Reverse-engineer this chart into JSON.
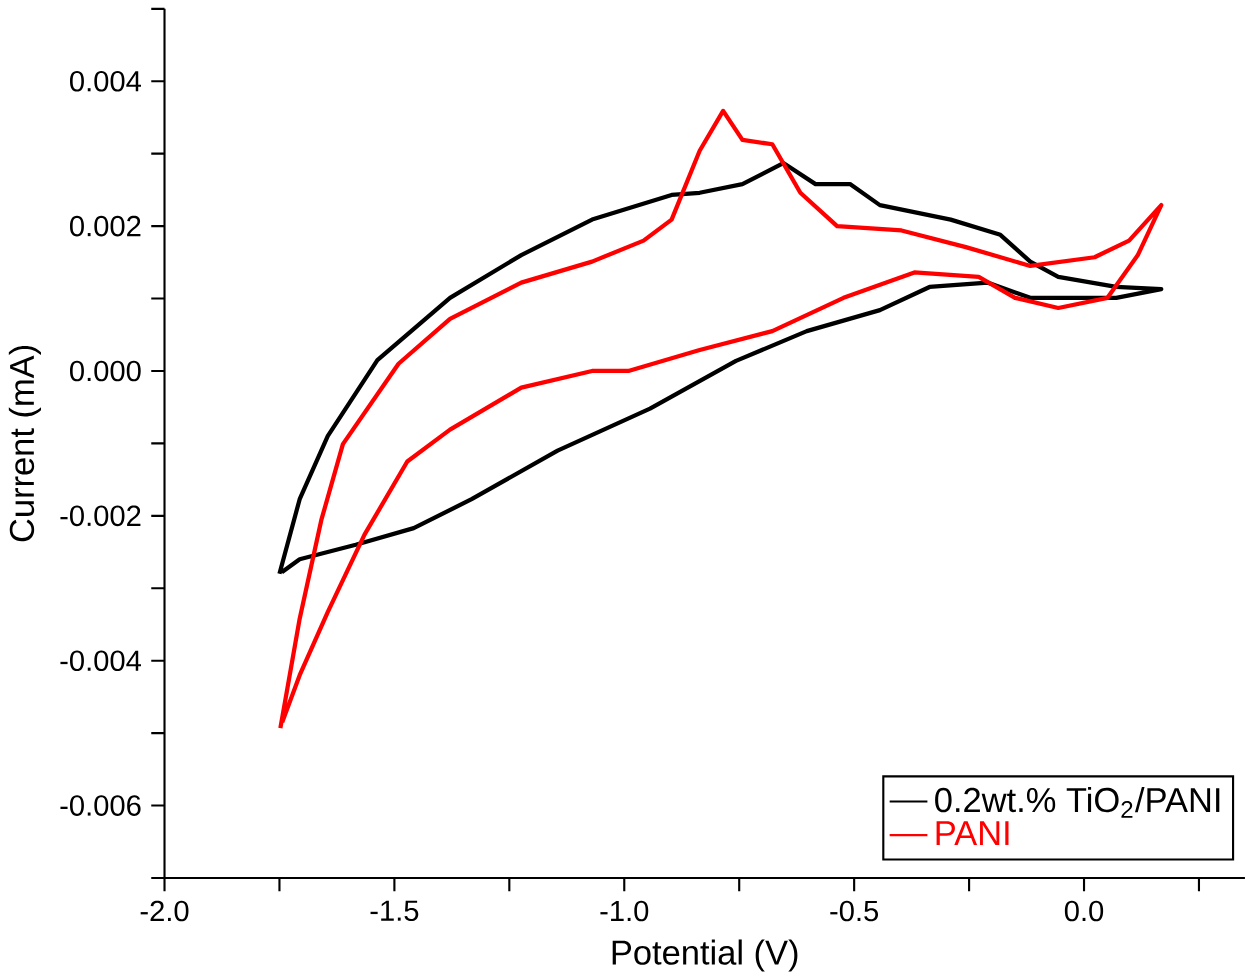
{
  "chart_data": {
    "type": "line",
    "xlabel": "Potential (V)",
    "ylabel": "Current (mA)",
    "xlim": [
      -2.0,
      0.35
    ],
    "ylim": [
      -0.007,
      0.005
    ],
    "xticks": [
      {
        "value": -2.0,
        "label": "-2.0"
      },
      {
        "value": -1.75,
        "label": null
      },
      {
        "value": -1.5,
        "label": "-1.5"
      },
      {
        "value": -1.25,
        "label": null
      },
      {
        "value": -1.0,
        "label": "-1.0"
      },
      {
        "value": -0.75,
        "label": null
      },
      {
        "value": -0.5,
        "label": "-0.5"
      },
      {
        "value": -0.25,
        "label": null
      },
      {
        "value": 0.0,
        "label": "0.0"
      },
      {
        "value": 0.25,
        "label": null
      }
    ],
    "yticks": [
      {
        "value": -0.007,
        "label": null
      },
      {
        "value": -0.006,
        "label": "-0.006"
      },
      {
        "value": -0.005,
        "label": null
      },
      {
        "value": -0.004,
        "label": "-0.004"
      },
      {
        "value": -0.003,
        "label": null
      },
      {
        "value": -0.002,
        "label": "-0.002"
      },
      {
        "value": -0.001,
        "label": null
      },
      {
        "value": 0.0,
        "label": "0.000"
      },
      {
        "value": 0.001,
        "label": null
      },
      {
        "value": 0.002,
        "label": "0.002"
      },
      {
        "value": 0.003,
        "label": null
      },
      {
        "value": 0.004,
        "label": "0.004"
      },
      {
        "value": 0.005,
        "label": null
      }
    ],
    "legend": "bottom right",
    "grid": false,
    "marker": "none",
    "line_style": "solid",
    "series": [
      {
        "name": "0.2wt.% TiO$_{2}$/PANI",
        "color": "#000000",
        "x": [
          -1.75,
          -1.706,
          -1.645,
          -1.537,
          -1.379,
          -1.224,
          -1.07,
          -0.897,
          -0.836,
          -0.743,
          -0.654,
          -0.584,
          -0.509,
          -0.444,
          -0.29,
          -0.182,
          -0.117,
          -0.056,
          0.07,
          0.168,
          0.07,
          -0.023,
          -0.117,
          -0.21,
          -0.336,
          -0.444,
          -0.603,
          -0.757,
          -0.944,
          -1.145,
          -1.332,
          -1.458,
          -1.584,
          -1.706,
          -1.745
        ],
        "values": [
          -0.0028,
          -0.00177,
          -0.0009,
          0.00015,
          0.00101,
          0.0016,
          0.00209,
          0.00243,
          0.00246,
          0.00258,
          0.00287,
          0.00258,
          0.00258,
          0.00229,
          0.00209,
          0.00188,
          0.00151,
          0.0013,
          0.00116,
          0.00113,
          0.00101,
          0.00101,
          0.00101,
          0.00122,
          0.00116,
          0.00084,
          0.00055,
          0.00014,
          -0.00052,
          -0.0011,
          -0.00177,
          -0.00217,
          -0.0024,
          -0.0026,
          -0.00278
        ]
      },
      {
        "name": "PANI",
        "color": "#ff0000",
        "x": [
          -1.748,
          -1.706,
          -1.659,
          -1.612,
          -1.491,
          -1.379,
          -1.224,
          -1.07,
          -0.958,
          -0.897,
          -0.836,
          -0.785,
          -0.743,
          -0.678,
          -0.617,
          -0.537,
          -0.397,
          -0.257,
          -0.117,
          0.023,
          0.098,
          0.168,
          0.117,
          0.051,
          -0.056,
          -0.15,
          -0.229,
          -0.369,
          -0.523,
          -0.678,
          -0.836,
          -0.991,
          -1.07,
          -1.224,
          -1.379,
          -1.472,
          -1.565,
          -1.645,
          -1.706,
          -1.744
        ],
        "values": [
          -0.00493,
          -0.00342,
          -0.00206,
          -0.00101,
          0.0001,
          0.00072,
          0.00122,
          0.00151,
          0.0018,
          0.00209,
          0.00304,
          0.00359,
          0.00319,
          0.00313,
          0.00246,
          0.002,
          0.00194,
          0.00171,
          0.00145,
          0.00157,
          0.0018,
          0.00229,
          0.0016,
          0.00101,
          0.00087,
          0.00101,
          0.0013,
          0.00136,
          0.00101,
          0.00055,
          0.00029,
          0.0,
          0.0,
          -0.00023,
          -0.00081,
          -0.00125,
          -0.00226,
          -0.00333,
          -0.0042,
          -0.00485
        ]
      }
    ]
  }
}
